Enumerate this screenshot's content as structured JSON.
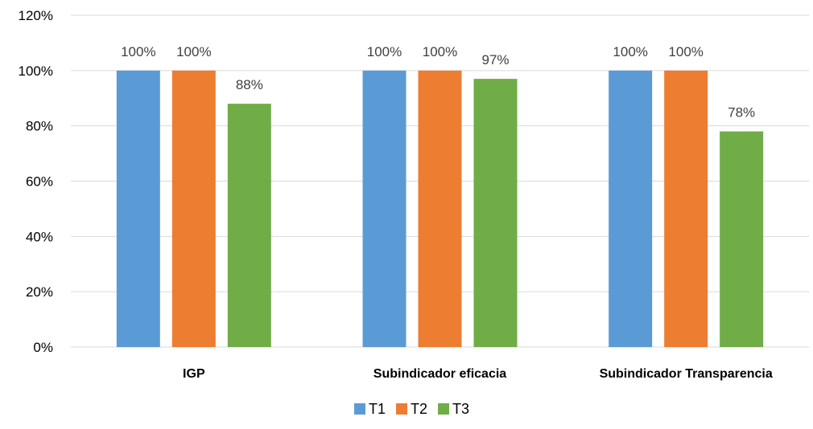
{
  "chart_data": {
    "type": "bar",
    "title": "",
    "xlabel": "",
    "ylabel": "",
    "categories": [
      "IGP",
      "Subindicador eficacia",
      "Subindicador Transparencia"
    ],
    "series": [
      {
        "name": "T1",
        "values": [
          100,
          100,
          100
        ],
        "color": "#5B9BD5",
        "labels": [
          "100%",
          "100%",
          "100%"
        ]
      },
      {
        "name": "T2",
        "values": [
          100,
          100,
          100
        ],
        "color": "#ED7D31",
        "labels": [
          "100%",
          "100%",
          "100%"
        ]
      },
      {
        "name": "T3",
        "values": [
          88,
          97,
          78
        ],
        "color": "#70AD47",
        "labels": [
          "88%",
          "97%",
          "78%"
        ]
      }
    ],
    "ylim": [
      0,
      120
    ],
    "yticks": [
      0,
      20,
      40,
      60,
      80,
      100,
      120
    ],
    "ytick_labels": [
      "0%",
      "20%",
      "40%",
      "60%",
      "80%",
      "100%",
      "120%"
    ],
    "grid": true,
    "legend_position": "bottom-center",
    "gridline_color": "#D9D9D9",
    "axis_text_color": "#000000",
    "data_label_color": "#404040"
  }
}
